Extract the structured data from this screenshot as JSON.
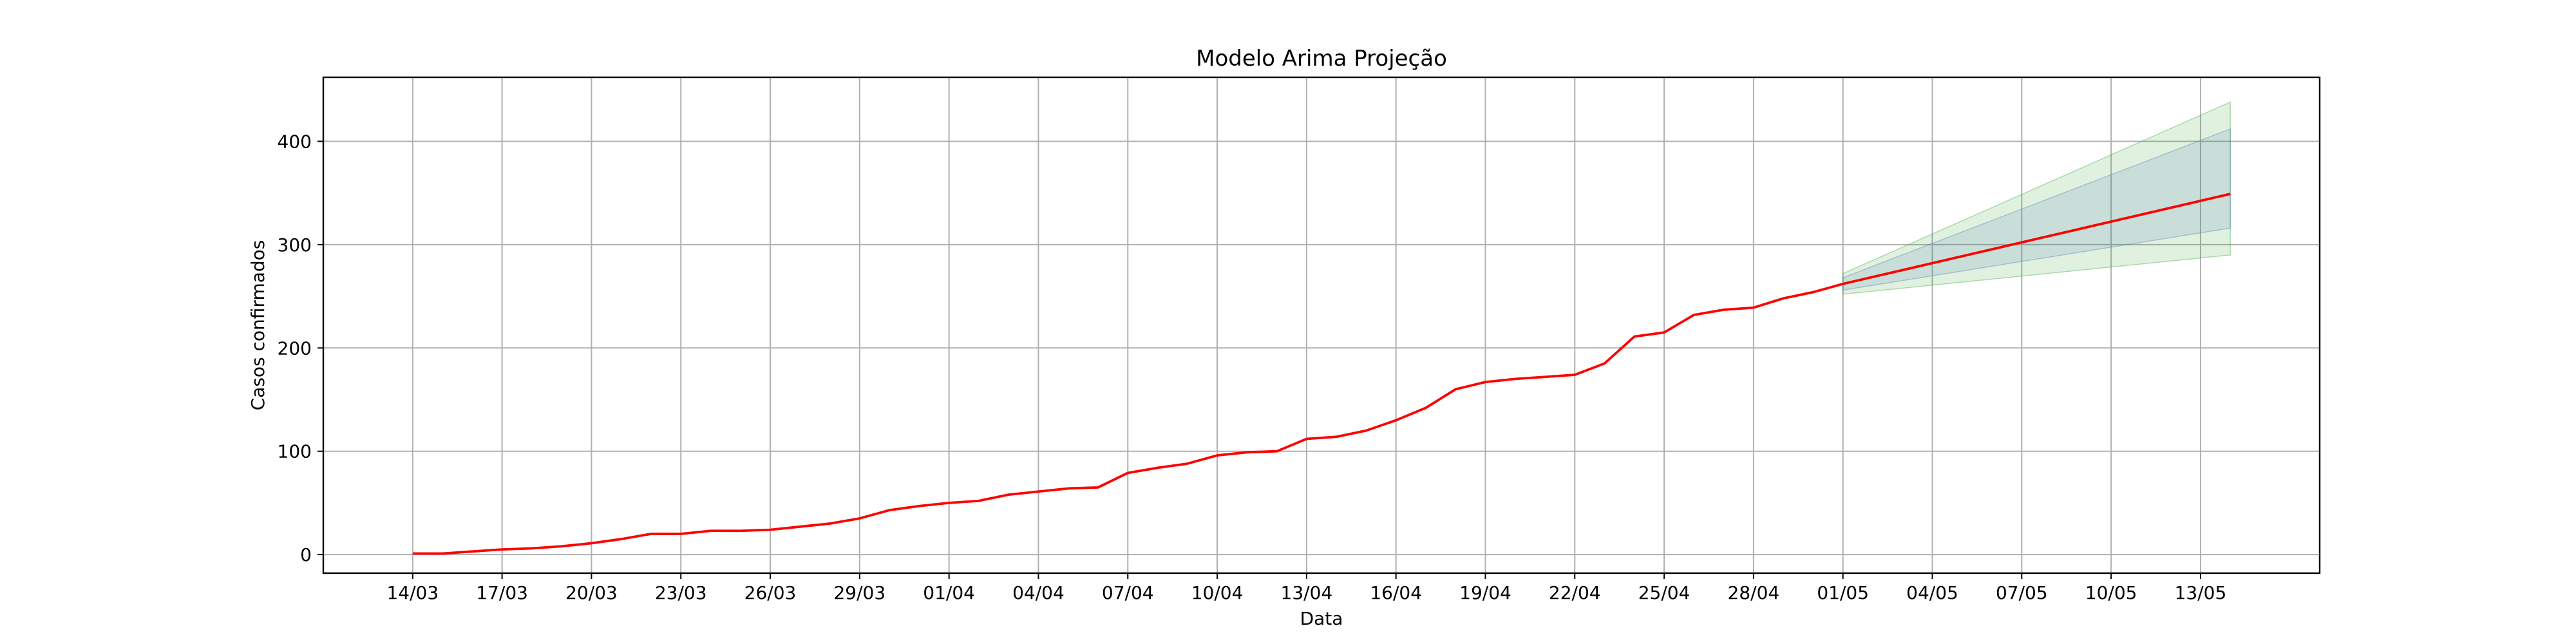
{
  "chart_data": {
    "type": "line",
    "title": "Modelo Arima Projeção",
    "xlabel": "Data",
    "ylabel": "Casos confirmados",
    "ylim": [
      -18,
      462
    ],
    "yticks": [
      0,
      100,
      200,
      300,
      400
    ],
    "xlim": [
      -3,
      64
    ],
    "xticks": [
      {
        "x": 0,
        "label": "14/03"
      },
      {
        "x": 3,
        "label": "17/03"
      },
      {
        "x": 6,
        "label": "20/03"
      },
      {
        "x": 9,
        "label": "23/03"
      },
      {
        "x": 12,
        "label": "26/03"
      },
      {
        "x": 15,
        "label": "29/03"
      },
      {
        "x": 18,
        "label": "01/04"
      },
      {
        "x": 21,
        "label": "04/04"
      },
      {
        "x": 24,
        "label": "07/04"
      },
      {
        "x": 27,
        "label": "10/04"
      },
      {
        "x": 30,
        "label": "13/04"
      },
      {
        "x": 33,
        "label": "16/04"
      },
      {
        "x": 36,
        "label": "19/04"
      },
      {
        "x": 39,
        "label": "22/04"
      },
      {
        "x": 42,
        "label": "25/04"
      },
      {
        "x": 45,
        "label": "28/04"
      },
      {
        "x": 48,
        "label": "01/05"
      },
      {
        "x": 51,
        "label": "04/05"
      },
      {
        "x": 54,
        "label": "07/05"
      },
      {
        "x": 57,
        "label": "10/05"
      },
      {
        "x": 60,
        "label": "13/05"
      }
    ],
    "grid": true,
    "series": [
      {
        "color": "#ff0000",
        "x": [
          0,
          1,
          2,
          3,
          4,
          5,
          6,
          7,
          8,
          9,
          10,
          11,
          12,
          13,
          14,
          15,
          16,
          17,
          18,
          19,
          20,
          21,
          22,
          23,
          24,
          25,
          26,
          27,
          28,
          29,
          30,
          31,
          32,
          33,
          34,
          35,
          36,
          37,
          38,
          39,
          40,
          41,
          42,
          43,
          44,
          45,
          46,
          47,
          48,
          49,
          50,
          51,
          52,
          53,
          54,
          55,
          56,
          57,
          58,
          59,
          60,
          61
        ],
        "values": [
          1,
          1,
          3,
          5,
          6,
          8,
          11,
          15,
          20,
          20,
          23,
          23,
          24,
          27,
          30,
          35,
          43,
          47,
          50,
          52,
          58,
          61,
          64,
          65,
          79,
          84,
          88,
          96,
          99,
          100,
          112,
          114,
          120,
          130,
          142,
          160,
          167,
          170,
          172,
          174,
          185,
          211,
          215,
          232,
          237,
          239,
          248,
          254,
          262,
          268.7,
          275.4,
          282.1,
          288.8,
          295.5,
          302.2,
          308.9,
          315.6,
          322.3,
          329,
          335.7,
          342.4,
          349.1
        ]
      }
    ],
    "bands": [
      {
        "color": "#2ca02c",
        "x": [
          48,
          61
        ],
        "lower": [
          252,
          290
        ],
        "upper": [
          272,
          438
        ]
      },
      {
        "color": "#4c72b0",
        "x": [
          48,
          61
        ],
        "lower": [
          256,
          316
        ],
        "upper": [
          268,
          412
        ]
      }
    ]
  }
}
